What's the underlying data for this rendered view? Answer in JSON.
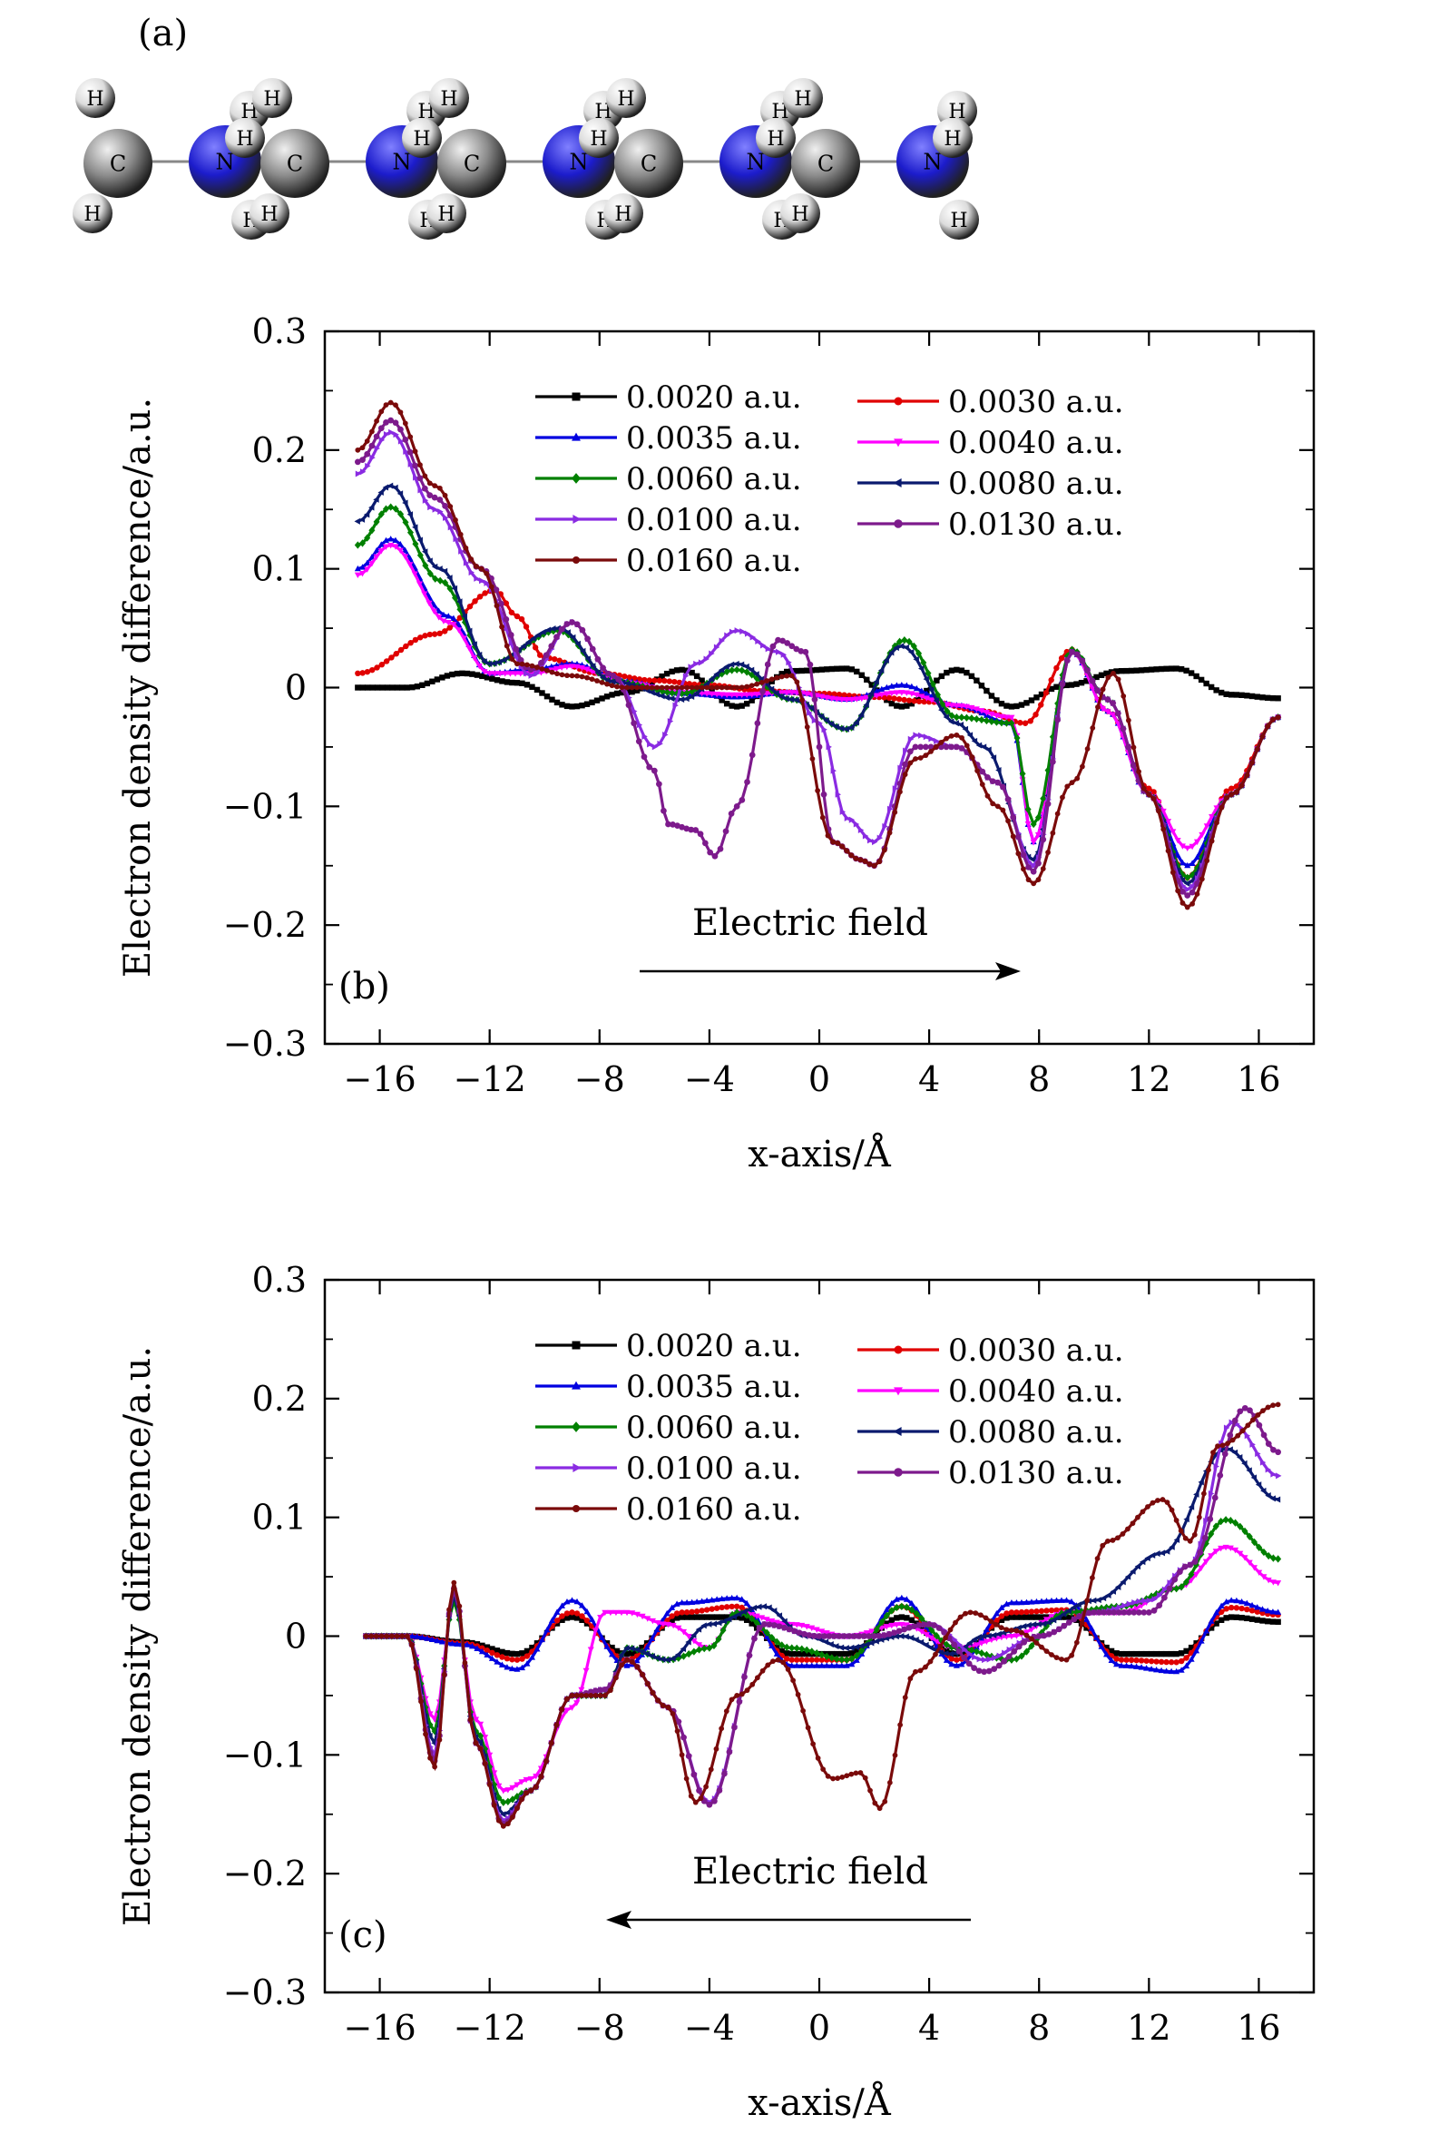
{
  "panel_a": {
    "label": "(a)",
    "molecules": [
      {
        "atoms": [
          "H",
          "C",
          "H",
          "H",
          "N",
          "H",
          "H"
        ]
      },
      {
        "atoms": [
          "H",
          "C",
          "H",
          "H",
          "N",
          "H",
          "H"
        ]
      },
      {
        "atoms": [
          "H",
          "C",
          "H",
          "H",
          "N",
          "H",
          "H"
        ]
      },
      {
        "atoms": [
          "H",
          "C",
          "H",
          "H",
          "N",
          "H",
          "H"
        ]
      },
      {
        "atoms": [
          "H",
          "C",
          "H",
          "H",
          "N",
          "H",
          "H"
        ]
      }
    ],
    "colors": {
      "carbon": "#8a8a8a",
      "nitrogen": "#1c1ccc",
      "hydrogen": "#dcdcdc"
    }
  },
  "chart_data": [
    {
      "type": "line",
      "panel_label": "(b)",
      "xlabel": "x-axis/Å",
      "ylabel": "Electron density difference/a.u.",
      "xlim": [
        -18,
        18
      ],
      "ylim": [
        -0.3,
        0.3
      ],
      "xticks": [
        -16,
        -12,
        -8,
        -4,
        0,
        4,
        8,
        12,
        16
      ],
      "xtick_labels": [
        "−16",
        "−12",
        "−8",
        "−4",
        "0",
        "4",
        "8",
        "12",
        "16"
      ],
      "yticks": [
        -0.3,
        -0.2,
        -0.1,
        0,
        0.1,
        0.2,
        0.3
      ],
      "ytick_labels": [
        "−0.3",
        "−0.2",
        "−0.1",
        "0",
        "0.1",
        "0.2",
        "0.3"
      ],
      "annotation": "Electric field",
      "arrow_direction": "right",
      "legend_position": "top-right",
      "grid": false,
      "series": [
        {
          "name": "0.0020 a.u.",
          "color": "#000000",
          "marker": "square",
          "x": [
            -16.8,
            -15,
            -13,
            -11,
            -9,
            -7,
            -5,
            -3,
            -1,
            1,
            3,
            5,
            7,
            9,
            11,
            13,
            15,
            16.7
          ],
          "y": [
            0,
            0,
            0.012,
            0.004,
            -0.016,
            -0.004,
            0.015,
            -0.016,
            0.014,
            0.016,
            -0.016,
            0.015,
            -0.016,
            0.002,
            0.014,
            0.016,
            -0.006,
            -0.009
          ]
        },
        {
          "name": "0.0030 a.u.",
          "color": "#e00000",
          "marker": "circle",
          "x": [
            -16.8,
            -14,
            -11.8,
            -11,
            -10,
            -8,
            -6,
            -4,
            -2,
            0,
            2,
            4,
            6,
            7.5,
            9.2,
            10.5,
            12,
            13.4,
            15,
            16.7
          ],
          "y": [
            0.012,
            0.045,
            0.082,
            0.06,
            0.025,
            0.012,
            0.006,
            0.002,
            -0.003,
            -0.005,
            -0.008,
            -0.012,
            -0.02,
            -0.03,
            0.032,
            -0.02,
            -0.085,
            -0.16,
            -0.085,
            -0.025
          ]
        },
        {
          "name": "0.0035 a.u.",
          "color": "#0000e0",
          "marker": "triangle",
          "x": [
            -16.8,
            -15.6,
            -13.5,
            -12,
            -10.5,
            -9,
            -7,
            -5,
            -3,
            -1,
            1,
            3,
            5,
            7,
            7.8,
            9.2,
            10.5,
            12,
            13.4,
            15,
            16.7
          ],
          "y": [
            0.1,
            0.125,
            0.06,
            0.012,
            0.015,
            0.02,
            0.005,
            -0.005,
            -0.008,
            -0.004,
            -0.01,
            0.002,
            -0.015,
            -0.03,
            -0.13,
            0.03,
            -0.02,
            -0.09,
            -0.15,
            -0.09,
            -0.025
          ]
        },
        {
          "name": "0.0040 a.u.",
          "color": "#ff00ff",
          "marker": "triangle-down",
          "x": [
            -16.8,
            -15.6,
            -13.5,
            -12,
            -10.5,
            -9,
            -7,
            -5,
            -3,
            -1,
            1,
            3,
            5,
            7,
            7.8,
            9.2,
            10.5,
            12,
            13.4,
            15,
            16.7
          ],
          "y": [
            0.095,
            0.12,
            0.055,
            0.012,
            0.012,
            0.018,
            0.004,
            -0.004,
            -0.006,
            -0.004,
            -0.01,
            -0.004,
            -0.015,
            -0.025,
            -0.13,
            0.03,
            -0.02,
            -0.09,
            -0.135,
            -0.09,
            -0.025
          ]
        },
        {
          "name": "0.0060 a.u.",
          "color": "#008000",
          "marker": "diamond",
          "x": [
            -16.8,
            -15.6,
            -13.8,
            -12,
            -9.5,
            -7.5,
            -5,
            -3,
            -1,
            1,
            3.1,
            5,
            7,
            7.8,
            9.2,
            10.5,
            12,
            13.4,
            15,
            16.7
          ],
          "y": [
            0.12,
            0.152,
            0.09,
            0.02,
            0.048,
            0.005,
            -0.005,
            0.015,
            -0.01,
            -0.035,
            0.04,
            -0.025,
            -0.03,
            -0.115,
            0.032,
            -0.01,
            -0.09,
            -0.16,
            -0.09,
            -0.025
          ]
        },
        {
          "name": "0.0080 a.u.",
          "color": "#0a1a6e",
          "marker": "left-triangle",
          "x": [
            -16.8,
            -15.6,
            -13.8,
            -12,
            -9.5,
            -7.5,
            -5,
            -3,
            -1,
            1,
            3,
            5,
            6,
            7.8,
            9.2,
            10.5,
            12,
            13.4,
            15,
            16.7
          ],
          "y": [
            0.14,
            0.17,
            0.1,
            0.02,
            0.05,
            0.005,
            -0.01,
            0.02,
            -0.01,
            -0.035,
            0.035,
            -0.03,
            -0.05,
            -0.145,
            0.03,
            -0.01,
            -0.09,
            -0.165,
            -0.09,
            -0.025
          ]
        },
        {
          "name": "0.0100 a.u.",
          "color": "#8a2be2",
          "marker": "right-triangle",
          "x": [
            -16.8,
            -15.6,
            -14,
            -12.3,
            -10.5,
            -9,
            -7.5,
            -6,
            -4.5,
            -3,
            -1.5,
            0,
            1,
            2,
            3.5,
            5,
            6.5,
            7.8,
            9.2,
            10.5,
            12,
            13.4,
            15,
            16.7
          ],
          "y": [
            0.18,
            0.215,
            0.15,
            0.09,
            0.01,
            0.055,
            0.01,
            -0.05,
            0.02,
            0.048,
            0.03,
            -0.03,
            -0.11,
            -0.13,
            -0.04,
            -0.05,
            -0.08,
            -0.15,
            0.03,
            -0.01,
            -0.09,
            -0.17,
            -0.09,
            -0.025
          ]
        },
        {
          "name": "0.0130 a.u.",
          "color": "#7d1a8c",
          "marker": "hexagon",
          "x": [
            -16.8,
            -15.6,
            -14,
            -12.3,
            -10.5,
            -9,
            -7.5,
            -6,
            -5.5,
            -4.5,
            -3.8,
            -3,
            -1.5,
            -0.5,
            0.5,
            1.5,
            2,
            3.5,
            5,
            6.5,
            7.8,
            9.2,
            10.5,
            12,
            13.4,
            15,
            16.7
          ],
          "y": [
            0.19,
            0.225,
            0.16,
            0.1,
            0.015,
            0.055,
            0.01,
            -0.07,
            -0.115,
            -0.12,
            -0.142,
            -0.1,
            0.04,
            0.03,
            -0.13,
            -0.145,
            -0.15,
            -0.05,
            -0.05,
            -0.08,
            -0.155,
            0.03,
            -0.01,
            -0.09,
            -0.175,
            -0.09,
            -0.025
          ]
        },
        {
          "name": "0.0160 a.u.",
          "color": "#7a0a0a",
          "marker": "star",
          "x": [
            -16.8,
            -15.6,
            -14,
            -12.3,
            -11,
            -9,
            -7,
            -5,
            -3,
            -1,
            0.5,
            1.5,
            2,
            3.5,
            5,
            6.5,
            7.8,
            9.2,
            10.7,
            12,
            13.4,
            15,
            16.7
          ],
          "y": [
            0.2,
            0.24,
            0.17,
            0.1,
            0.02,
            0.01,
            0,
            0,
            0,
            0.01,
            -0.13,
            -0.145,
            -0.15,
            -0.06,
            -0.04,
            -0.1,
            -0.165,
            -0.08,
            0.012,
            -0.09,
            -0.185,
            -0.09,
            -0.025
          ]
        }
      ]
    },
    {
      "type": "line",
      "panel_label": "(c)",
      "xlabel": "x-axis/Å",
      "ylabel": "Electron density difference/a.u.",
      "xlim": [
        -18,
        18
      ],
      "ylim": [
        -0.3,
        0.3
      ],
      "xticks": [
        -16,
        -12,
        -8,
        -4,
        0,
        4,
        8,
        12,
        16
      ],
      "xtick_labels": [
        "−16",
        "−12",
        "−8",
        "−4",
        "0",
        "4",
        "8",
        "12",
        "16"
      ],
      "yticks": [
        -0.3,
        -0.2,
        -0.1,
        0,
        0.1,
        0.2,
        0.3
      ],
      "ytick_labels": [
        "−0.3",
        "−0.2",
        "−0.1",
        "0",
        "0.1",
        "0.2",
        "0.3"
      ],
      "annotation": "Electric field",
      "arrow_direction": "left",
      "legend_position": "top-right",
      "grid": false,
      "series": [
        {
          "name": "0.0020 a.u.",
          "color": "#000000",
          "marker": "square",
          "x": [
            -16.5,
            -15,
            -13,
            -11,
            -9,
            -7,
            -5,
            -3,
            -1,
            1,
            3,
            5,
            7,
            9,
            11,
            13,
            15,
            16.7
          ],
          "y": [
            0,
            0,
            -0.005,
            -0.015,
            0.016,
            -0.015,
            0.016,
            0.016,
            -0.015,
            -0.015,
            0.016,
            -0.015,
            0.016,
            0.016,
            -0.015,
            -0.015,
            0.016,
            0.012
          ]
        },
        {
          "name": "0.0030 a.u.",
          "color": "#e00000",
          "marker": "circle",
          "x": [
            -16.5,
            -15,
            -13,
            -11,
            -9,
            -7,
            -5,
            -3,
            -1,
            1,
            3,
            5,
            7,
            9,
            11,
            13,
            15,
            16.7
          ],
          "y": [
            0,
            0,
            -0.006,
            -0.02,
            0.02,
            -0.02,
            0.02,
            0.025,
            -0.02,
            -0.02,
            0.025,
            -0.02,
            0.02,
            0.022,
            -0.02,
            -0.022,
            0.024,
            0.018
          ]
        },
        {
          "name": "0.0035 a.u.",
          "color": "#0000e0",
          "marker": "triangle",
          "x": [
            -16.5,
            -15,
            -13,
            -11,
            -9,
            -7,
            -5,
            -3,
            -1,
            1,
            3,
            5,
            7,
            9,
            11,
            13,
            15,
            16.7
          ],
          "y": [
            0,
            0,
            -0.007,
            -0.028,
            0.03,
            -0.025,
            0.028,
            0.032,
            -0.025,
            -0.025,
            0.032,
            -0.025,
            0.028,
            0.03,
            -0.025,
            -0.03,
            0.03,
            0.02
          ]
        },
        {
          "name": "0.0040 a.u.",
          "color": "#ff00ff",
          "marker": "triangle-down",
          "x": [
            -16.5,
            -15,
            -14,
            -13.3,
            -12.5,
            -11.5,
            -10.5,
            -9,
            -7.8,
            -7,
            -5.5,
            -4,
            -3,
            -1,
            1,
            3,
            5,
            7,
            9,
            11,
            13,
            14.8,
            16.7
          ],
          "y": [
            0,
            0,
            -0.07,
            0.03,
            -0.07,
            -0.13,
            -0.12,
            -0.06,
            0.02,
            0.02,
            0.01,
            -0.01,
            0.02,
            0.01,
            0,
            0.01,
            -0.01,
            0,
            0.02,
            0.02,
            0.04,
            0.075,
            0.045
          ]
        },
        {
          "name": "0.0060 a.u.",
          "color": "#008000",
          "marker": "diamond",
          "x": [
            -16.5,
            -15,
            -14,
            -13.3,
            -12.5,
            -11.5,
            -10.5,
            -9,
            -7.8,
            -7,
            -5.5,
            -4,
            -3,
            -1,
            1,
            3,
            5,
            7,
            9,
            11,
            13,
            14.8,
            16.7
          ],
          "y": [
            0,
            0,
            -0.08,
            0.03,
            -0.08,
            -0.14,
            -0.13,
            -0.05,
            -0.05,
            -0.01,
            -0.02,
            -0.01,
            0.02,
            -0.01,
            -0.02,
            0.025,
            -0.01,
            -0.02,
            0.02,
            0.025,
            0.04,
            0.098,
            0.065
          ]
        },
        {
          "name": "0.0080 a.u.",
          "color": "#0a1a6e",
          "marker": "left-triangle",
          "x": [
            -16.5,
            -15,
            -14,
            -13.3,
            -12.5,
            -11.5,
            -10.5,
            -9,
            -7.8,
            -7,
            -5.5,
            -4,
            -2,
            -0.5,
            1,
            3,
            4.8,
            6,
            8,
            10,
            12.5,
            14.8,
            16.7
          ],
          "y": [
            0,
            0,
            -0.09,
            0.035,
            -0.085,
            -0.15,
            -0.13,
            -0.05,
            -0.05,
            -0.01,
            -0.02,
            0.01,
            0.025,
            0.0,
            -0.01,
            0.0,
            -0.015,
            0.0,
            0.01,
            0.03,
            0.07,
            0.158,
            0.115
          ]
        },
        {
          "name": "0.0100 a.u.",
          "color": "#8a2be2",
          "marker": "right-triangle",
          "x": [
            -16.5,
            -15,
            -14,
            -13.3,
            -12.5,
            -11.5,
            -10.5,
            -9,
            -7.8,
            -7,
            -5.5,
            -4,
            -2,
            0,
            2,
            4,
            6,
            8,
            10,
            12,
            13.5,
            15,
            16.7
          ],
          "y": [
            0,
            0,
            -0.1,
            0.04,
            -0.09,
            -0.155,
            -0.13,
            -0.05,
            -0.045,
            -0.02,
            -0.06,
            -0.14,
            0.01,
            0.0,
            0.0,
            0.01,
            -0.02,
            0.0,
            0.02,
            0.03,
            0.06,
            0.18,
            0.135
          ]
        },
        {
          "name": "0.0130 a.u.",
          "color": "#7d1a8c",
          "marker": "hexagon",
          "x": [
            -16.5,
            -15,
            -14,
            -13.3,
            -12.5,
            -11.5,
            -10.5,
            -9,
            -7.8,
            -7,
            -5.5,
            -4,
            -2,
            0,
            2,
            4,
            6,
            8,
            10,
            12,
            13.5,
            15.5,
            16.7
          ],
          "y": [
            0,
            0,
            -0.105,
            0.04,
            -0.09,
            -0.158,
            -0.13,
            -0.05,
            -0.045,
            -0.02,
            -0.06,
            -0.142,
            0.01,
            0.0,
            0.0,
            0.01,
            -0.03,
            0.0,
            0.02,
            0.02,
            0.06,
            0.192,
            0.155
          ]
        },
        {
          "name": "0.0160 a.u.",
          "color": "#7a0a0a",
          "marker": "star",
          "x": [
            -16.5,
            -15,
            -14,
            -13.3,
            -12.5,
            -11.5,
            -10.5,
            -9,
            -7.8,
            -7,
            -5.5,
            -4.5,
            -3,
            -1.5,
            0.5,
            1.5,
            2.2,
            3.5,
            5.5,
            7,
            9,
            10.5,
            12.5,
            13.5,
            14.5,
            16.7
          ],
          "y": [
            0,
            0,
            -0.11,
            0.045,
            -0.09,
            -0.16,
            -0.13,
            -0.05,
            -0.05,
            -0.02,
            -0.06,
            -0.14,
            -0.05,
            -0.02,
            -0.12,
            -0.115,
            -0.145,
            -0.03,
            0.02,
            0.005,
            -0.02,
            0.08,
            0.115,
            0.08,
            0.16,
            0.195
          ]
        }
      ]
    }
  ]
}
